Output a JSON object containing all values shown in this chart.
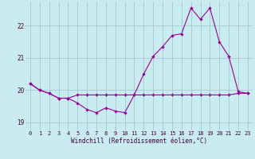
{
  "xlabel": "Windchill (Refroidissement éolien,°C)",
  "background_color": "#c8ecf0",
  "grid_color": "#aaccd8",
  "line_color": "#990099",
  "xlim_min": -0.5,
  "xlim_max": 23.5,
  "ylim_min": 18.75,
  "ylim_max": 22.75,
  "yticks": [
    19,
    20,
    21,
    22
  ],
  "xticks": [
    0,
    1,
    2,
    3,
    4,
    5,
    6,
    7,
    8,
    9,
    10,
    11,
    12,
    13,
    14,
    15,
    16,
    17,
    18,
    19,
    20,
    21,
    22,
    23
  ],
  "series1_x": [
    0,
    1,
    2,
    3,
    4,
    5,
    6,
    7,
    8,
    9,
    10,
    11,
    12,
    13,
    14,
    15,
    16,
    17,
    18,
    19,
    20,
    21,
    22,
    23
  ],
  "series1_y": [
    20.2,
    20.0,
    19.9,
    19.75,
    19.75,
    19.6,
    19.4,
    19.3,
    19.45,
    19.35,
    19.3,
    19.85,
    20.5,
    21.05,
    21.35,
    21.7,
    21.75,
    22.55,
    22.2,
    22.55,
    21.5,
    21.05,
    19.95,
    19.9
  ],
  "series2_x": [
    0,
    1,
    2,
    3,
    4,
    5,
    6,
    7,
    8,
    9,
    10,
    11,
    12,
    13,
    14,
    15,
    16,
    17,
    18,
    19,
    20,
    21,
    22,
    23
  ],
  "series2_y": [
    20.2,
    20.0,
    19.9,
    19.75,
    19.75,
    19.85,
    19.85,
    19.85,
    19.85,
    19.85,
    19.85,
    19.85,
    19.85,
    19.85,
    19.85,
    19.85,
    19.85,
    19.85,
    19.85,
    19.85,
    19.85,
    19.85,
    19.9,
    19.9
  ],
  "tick_fontsize": 5.0,
  "xlabel_fontsize": 5.5,
  "tick_color": "#440044",
  "xlabel_color": "#440044"
}
